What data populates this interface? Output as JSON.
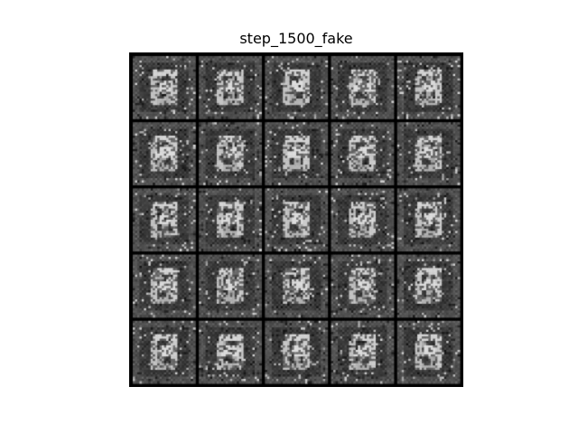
{
  "figure": {
    "title": "step_1500_fake"
  },
  "image_grid": {
    "rows": 5,
    "cols": 5,
    "description_colors": {
      "border": "#000000",
      "tile_background": "#5a5a5a",
      "stroke": "#f0f0f0"
    }
  }
}
